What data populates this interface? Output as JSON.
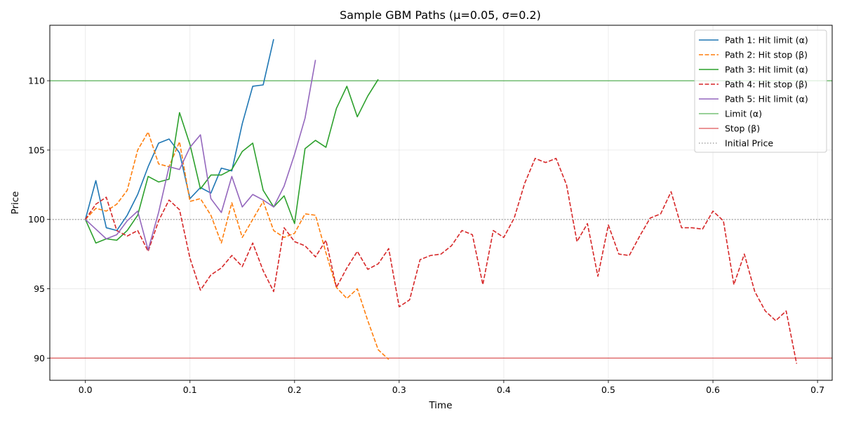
{
  "chart_data": {
    "type": "line",
    "title": "Sample GBM Paths (μ=0.05, σ=0.2)",
    "xlabel": "Time",
    "ylabel": "Price",
    "xlim": [
      -0.034,
      0.714
    ],
    "ylim": [
      88.4,
      114.0
    ],
    "xticks": [
      0.0,
      0.1,
      0.2,
      0.3,
      0.4,
      0.5,
      0.6,
      0.7
    ],
    "xtick_labels": [
      "0.0",
      "0.1",
      "0.2",
      "0.3",
      "0.4",
      "0.5",
      "0.6",
      "0.7"
    ],
    "yticks": [
      90,
      95,
      100,
      105,
      110
    ],
    "ytick_labels": [
      "90",
      "95",
      "100",
      "105",
      "110"
    ],
    "grid": true,
    "legend_position": "upper-right",
    "dt": 0.01,
    "series": [
      {
        "name": "Path 1: Hit limit (α)",
        "color": "#1f77b4",
        "dash": "solid",
        "values": [
          100.0,
          102.8,
          99.4,
          99.2,
          100.3,
          101.8,
          103.8,
          105.5,
          105.8,
          104.8,
          101.5,
          102.3,
          101.9,
          103.7,
          103.5,
          106.9,
          109.6,
          109.7,
          113.0
        ]
      },
      {
        "name": "Path 2: Hit stop (β)",
        "color": "#ff7f0e",
        "dash": "dashed",
        "values": [
          100.0,
          100.8,
          100.6,
          101.1,
          102.1,
          105.0,
          106.3,
          104.0,
          103.8,
          105.6,
          101.3,
          101.5,
          100.3,
          98.3,
          101.2,
          98.7,
          100.0,
          101.3,
          99.2,
          98.7,
          99.0,
          100.4,
          100.3,
          97.6,
          95.1,
          94.3,
          95.0,
          92.7,
          90.6,
          89.9
        ]
      },
      {
        "name": "Path 3: Hit limit (α)",
        "color": "#2ca02c",
        "dash": "solid",
        "values": [
          100.0,
          98.3,
          98.6,
          98.5,
          99.2,
          100.3,
          103.1,
          102.7,
          102.9,
          107.7,
          105.4,
          102.2,
          103.2,
          103.2,
          103.6,
          104.9,
          105.5,
          102.1,
          100.9,
          101.7,
          99.7,
          105.1,
          105.7,
          105.2,
          108.0,
          109.6,
          107.4,
          108.9,
          110.1
        ]
      },
      {
        "name": "Path 4: Hit stop (β)",
        "color": "#d62728",
        "dash": "dashed",
        "values": [
          100.0,
          101.1,
          101.6,
          99.2,
          98.8,
          99.2,
          97.7,
          99.9,
          101.4,
          100.7,
          97.2,
          94.9,
          96.0,
          96.5,
          97.4,
          96.6,
          98.3,
          96.3,
          94.8,
          99.4,
          98.4,
          98.1,
          97.3,
          98.5,
          95.1,
          96.5,
          97.7,
          96.4,
          96.8,
          97.9,
          93.7,
          94.2,
          97.1,
          97.4,
          97.5,
          98.1,
          99.2,
          98.9,
          95.3,
          99.2,
          98.7,
          100.1,
          102.6,
          104.4,
          104.1,
          104.4,
          102.5,
          98.4,
          99.7,
          95.9,
          99.6,
          97.5,
          97.4,
          98.8,
          100.1,
          100.4,
          102.0,
          99.4,
          99.4,
          99.3,
          100.6,
          99.9,
          95.3,
          97.5,
          94.8,
          93.4,
          92.7,
          93.4,
          89.6
        ]
      },
      {
        "name": "Path 5: Hit limit (α)",
        "color": "#9467bd",
        "dash": "solid",
        "values": [
          100.0,
          99.3,
          98.6,
          98.9,
          99.9,
          100.6,
          97.8,
          100.5,
          103.8,
          103.6,
          105.2,
          106.1,
          101.5,
          100.5,
          103.1,
          100.9,
          101.8,
          101.4,
          100.9,
          102.4,
          104.7,
          107.3,
          111.5
        ]
      }
    ],
    "reference_lines": [
      {
        "name": "Limit (α)",
        "value": 110,
        "color": "#2ca02c",
        "dash": "solid",
        "opacity": 0.65
      },
      {
        "name": "Stop (β)",
        "value": 90,
        "color": "#d62728",
        "dash": "solid",
        "opacity": 0.65
      },
      {
        "name": "Initial Price",
        "value": 100,
        "color": "#808080",
        "dash": "dotted",
        "opacity": 0.7
      }
    ]
  }
}
